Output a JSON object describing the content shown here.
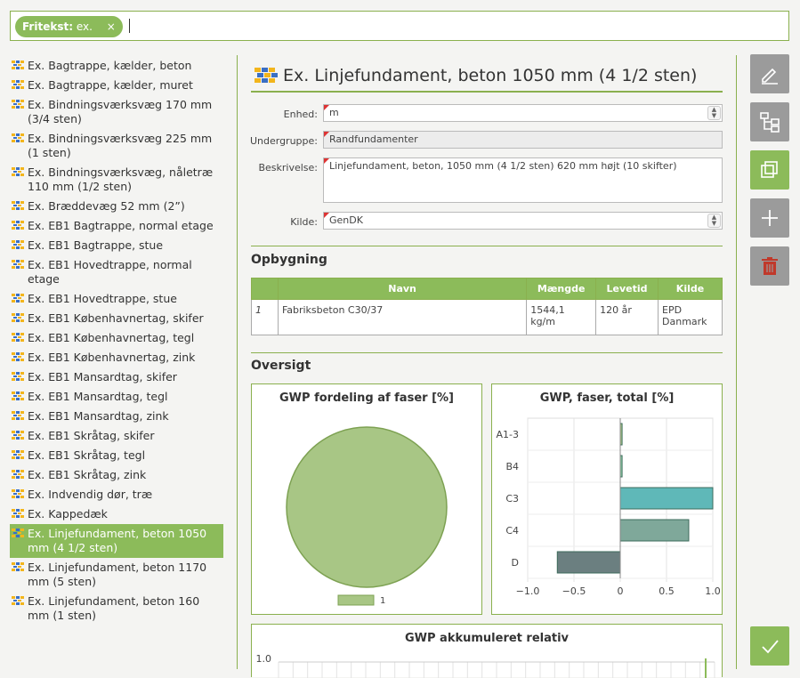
{
  "filter": {
    "chip_label": "Fritekst:",
    "chip_value": "ex.",
    "chip_close": "×"
  },
  "list": [
    "Ex. Bagtrappe, kælder, beton",
    "Ex. Bagtrappe, kælder, muret",
    "Ex. Bindningsværksvæg 170 mm (3/4 sten)",
    "Ex. Bindningsværksvæg 225 mm (1 sten)",
    "Ex. Bindningsværksvæg, nåletræ 110 mm (1/2 sten)",
    "Ex. Brædde­væg 52 mm (2”)",
    "Ex. EB1 Bagtrappe, normal etage",
    "Ex. EB1 Bagtrappe, stue",
    "Ex. EB1 Hovedtrappe, normal etage",
    "Ex. EB1 Hovedtrappe, stue",
    "Ex. EB1 Københavnertag, skifer",
    "Ex. EB1 Københavnertag, tegl",
    "Ex. EB1 Københavnertag, zink",
    "Ex. EB1 Mansardtag, skifer",
    "Ex. EB1 Mansardtag, tegl",
    "Ex. EB1 Mansardtag, zink",
    "Ex. EB1 Skråtag, skifer",
    "Ex. EB1 Skråtag, tegl",
    "Ex. EB1 Skråtag, zink",
    "Ex. Indvendig dør, træ",
    "Ex. Kappedæk",
    "Ex. Linjefundament, beton 1050 mm (4 1/2 sten)",
    "Ex. Linjefundament, beton 1170 mm (5 sten)",
    "Ex. Linjefundament, beton 160 mm (1 sten)"
  ],
  "selected_index": 21,
  "detail": {
    "title": "Ex. Linjefundament, beton 1050 mm (4 1/2 sten)",
    "enhed_label": "Enhed:",
    "enhed_value": "m",
    "undergruppe_label": "Undergruppe:",
    "undergruppe_value": "Randfundamenter",
    "beskrivelse_label": "Beskrivelse:",
    "beskrivelse_value": "Linjefundament, beton, 1050 mm (4 1/2 sten) 620 mm højt (10 skifter)",
    "kilde_label": "Kilde:",
    "kilde_value": "GenDK"
  },
  "opbygning": {
    "title": "Opbygning",
    "headers": [
      "",
      "Navn",
      "Mængde",
      "Levetid",
      "Kilde"
    ],
    "rows": [
      [
        "1",
        "Fabriksbeton C30/37",
        "1544,1 kg/m",
        "120 år",
        "EPD Danmark"
      ]
    ]
  },
  "oversigt": {
    "title": "Oversigt"
  },
  "colors": {
    "accent": "#8cbb5a",
    "border": "#8ab04e",
    "delete": "#c0392b"
  },
  "chart_data": [
    {
      "type": "pie",
      "title": "GWP fordeling af faser [%]",
      "slices": [
        {
          "label": "1",
          "value": 100
        }
      ],
      "legend": "bottom",
      "colors": [
        "#a8c685"
      ]
    },
    {
      "type": "bar",
      "orientation": "horizontal",
      "title": "GWP, faser, total [%]",
      "categories": [
        "A1-3",
        "B4",
        "C3",
        "C4",
        "D"
      ],
      "values": [
        0.02,
        0.02,
        1.0,
        0.74,
        -0.68
      ],
      "xlim": [
        -1.0,
        1.0
      ],
      "xticks": [
        "−1.0",
        "−0.5",
        "0",
        "0.5",
        "1.0"
      ],
      "grid": true,
      "colors": [
        "#a8c685",
        "#8ccfa6",
        "#5fb8b8",
        "#7fa89a",
        "#6b7f80"
      ]
    },
    {
      "type": "line",
      "title": "GWP akkumuleret relativ",
      "yticks": [
        "1.0"
      ]
    }
  ]
}
